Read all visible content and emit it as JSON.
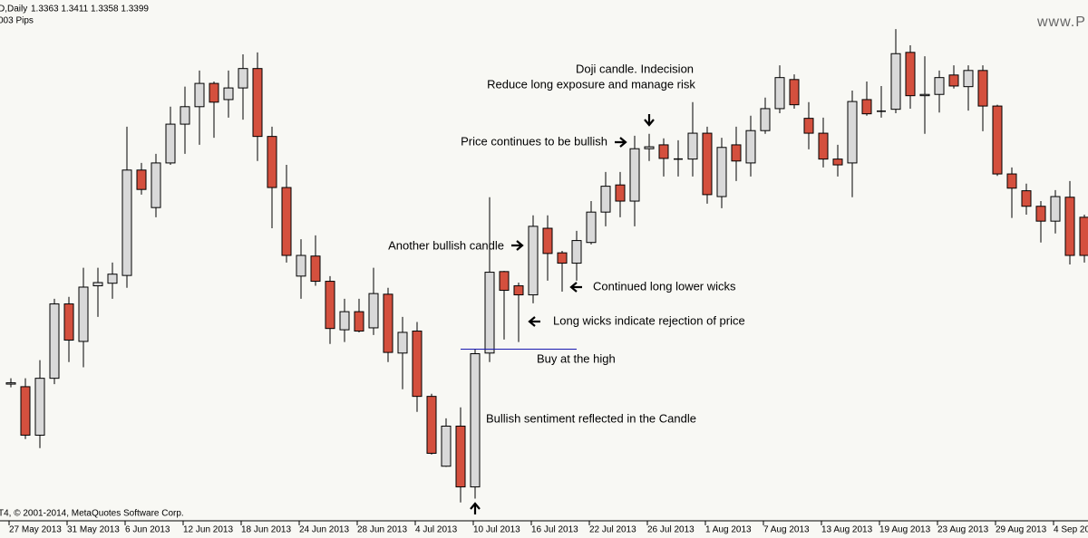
{
  "chart_data": {
    "type": "candlestick",
    "title": "D,Daily",
    "header_values": "1.3363 1.3411 1.3358 1.3399",
    "subtitle": "003 Pips",
    "watermark": "www.P",
    "copyright": "T4, © 2001-2014, MetaQuotes Software Corp.",
    "up_color": "#d9d9d9",
    "down_color": "#d4503e",
    "outline_color": "#000000",
    "categories": [
      "27 May 2013",
      null,
      null,
      null,
      "31 May 2013",
      null,
      null,
      null,
      "6 Jun 2013",
      null,
      null,
      null,
      "12 Jun 2013",
      null,
      null,
      null,
      "18 Jun 2013",
      null,
      null,
      null,
      "24 Jun 2013",
      null,
      null,
      null,
      "28 Jun 2013",
      null,
      null,
      null,
      "4 Jul 2013",
      null,
      null,
      null,
      "10 Jul 2013",
      null,
      null,
      null,
      "16 Jul 2013",
      null,
      null,
      null,
      "22 Jul 2013",
      null,
      null,
      null,
      "26 Jul 2013",
      null,
      null,
      null,
      "1 Aug 2013",
      null,
      null,
      null,
      "7 Aug 2013",
      null,
      null,
      null,
      "13 Aug 2013",
      null,
      null,
      null,
      "19 Aug 2013",
      null,
      null,
      null,
      "23 Aug 2013",
      null,
      null,
      null,
      "29 Aug 2013",
      null,
      null,
      null,
      "4 Sep 2013",
      null,
      null
    ],
    "open": [
      1.2906,
      1.2902,
      1.2827,
      1.2915,
      1.303,
      1.2972,
      1.3058,
      1.3062,
      1.3074,
      1.3237,
      1.3179,
      1.3248,
      1.3308,
      1.3335,
      1.3371,
      1.3346,
      1.3364,
      1.3394,
      1.3289,
      1.321,
      1.3073,
      1.3104,
      1.3065,
      1.299,
      1.3018,
      1.2993,
      1.3045,
      1.2954,
      1.2988,
      1.2887,
      1.2779,
      1.2841,
      1.2747,
      1.2954,
      1.308,
      1.3058,
      1.3044,
      1.3147,
      1.3109,
      1.3093,
      1.3125,
      1.3172,
      1.3214,
      1.3189,
      1.327,
      1.3276,
      1.3254,
      1.3254,
      1.3294,
      1.3196,
      1.3276,
      1.3248,
      1.3298,
      1.3332,
      1.3377,
      1.3317,
      1.3294,
      1.3254,
      1.3248,
      1.3346,
      1.3328,
      1.3331,
      1.3419,
      1.3352,
      1.3354,
      1.3384,
      1.3366,
      1.3391,
      1.3336,
      1.3231,
      1.3205,
      1.3181,
      1.3158,
      1.3195,
      1.3164
    ],
    "high": [
      1.2915,
      1.2915,
      1.2943,
      1.3038,
      1.3041,
      1.3086,
      1.3086,
      1.3094,
      1.3304,
      1.3248,
      1.3262,
      1.3335,
      1.3366,
      1.3391,
      1.3374,
      1.3391,
      1.3416,
      1.3419,
      1.3304,
      1.3245,
      1.313,
      1.3136,
      1.3073,
      1.3038,
      1.3038,
      1.3086,
      1.3055,
      1.301,
      1.3002,
      1.2891,
      1.2853,
      1.287,
      1.296,
      1.3195,
      1.3081,
      1.3063,
      1.3167,
      1.3167,
      1.3112,
      1.3143,
      1.3189,
      1.3234,
      1.3234,
      1.329,
      1.3293,
      1.3286,
      1.3283,
      1.3342,
      1.3304,
      1.3287,
      1.3304,
      1.3321,
      1.3349,
      1.3399,
      1.3385,
      1.3342,
      1.3318,
      1.3276,
      1.336,
      1.3374,
      1.3367,
      1.3455,
      1.343,
      1.3413,
      1.3391,
      1.3399,
      1.3399,
      1.3399,
      1.3338,
      1.3241,
      1.3216,
      1.3189,
      1.3206,
      1.322,
      1.3168
    ],
    "low": [
      1.2901,
      1.2821,
      1.2807,
      1.2906,
      1.294,
      1.2932,
      1.301,
      1.3038,
      1.3055,
      1.3199,
      1.3164,
      1.3245,
      1.3262,
      1.3276,
      1.3287,
      1.3318,
      1.3315,
      1.3251,
      1.3147,
      1.3094,
      1.3038,
      1.3058,
      1.2968,
      1.2971,
      1.2986,
      1.2982,
      1.294,
      1.2898,
      1.2863,
      1.2797,
      1.2778,
      1.2723,
      1.2729,
      1.294,
      1.2975,
      1.2971,
      1.3031,
      1.3066,
      1.3049,
      1.3066,
      1.3122,
      1.315,
      1.3164,
      1.315,
      1.3251,
      1.3227,
      1.3227,
      1.3227,
      1.3185,
      1.3178,
      1.322,
      1.3227,
      1.3293,
      1.3325,
      1.3332,
      1.3269,
      1.3241,
      1.3227,
      1.3195,
      1.3321,
      1.3318,
      1.3325,
      1.3332,
      1.3293,
      1.3326,
      1.3363,
      1.3329,
      1.3297,
      1.3228,
      1.3163,
      1.3168,
      1.3125,
      1.3139,
      1.3091,
      1.3094
    ],
    "close": [
      1.2908,
      1.2827,
      1.2915,
      1.303,
      1.2974,
      1.3056,
      1.3063,
      1.3076,
      1.3237,
      1.3207,
      1.3248,
      1.3308,
      1.3335,
      1.3371,
      1.3342,
      1.3364,
      1.3394,
      1.3289,
      1.321,
      1.3105,
      1.3105,
      1.3065,
      1.2992,
      1.3018,
      1.2988,
      1.3046,
      1.2955,
      1.2986,
      1.2887,
      1.2799,
      1.2841,
      1.2747,
      1.2953,
      1.3079,
      1.3051,
      1.3044,
      1.315,
      1.3108,
      1.3093,
      1.3128,
      1.3172,
      1.3212,
      1.3189,
      1.327,
      1.3273,
      1.3255,
      1.3254,
      1.3294,
      1.3199,
      1.3272,
      1.3251,
      1.3298,
      1.3332,
      1.338,
      1.3338,
      1.3294,
      1.3254,
      1.3245,
      1.3343,
      1.3324,
      1.3328,
      1.3417,
      1.3352,
      1.3354,
      1.338,
      1.3367,
      1.3391,
      1.3336,
      1.3231,
      1.3209,
      1.3181,
      1.3158,
      1.3196,
      1.3105,
      1.3105
    ],
    "ylim": [
      1.2696,
      1.35
    ],
    "hline": {
      "value": 1.296,
      "color": "#1a1ab0"
    },
    "annotations": [
      "Doji candle. Indecision",
      "Reduce long exposure and manage risk",
      "Price continues to be bullish",
      "Another bullish candle",
      "Continued long lower wicks",
      "Long wicks indicate rejection of price",
      "Buy at the high",
      "Bullish sentiment reflected in the Candle"
    ]
  }
}
